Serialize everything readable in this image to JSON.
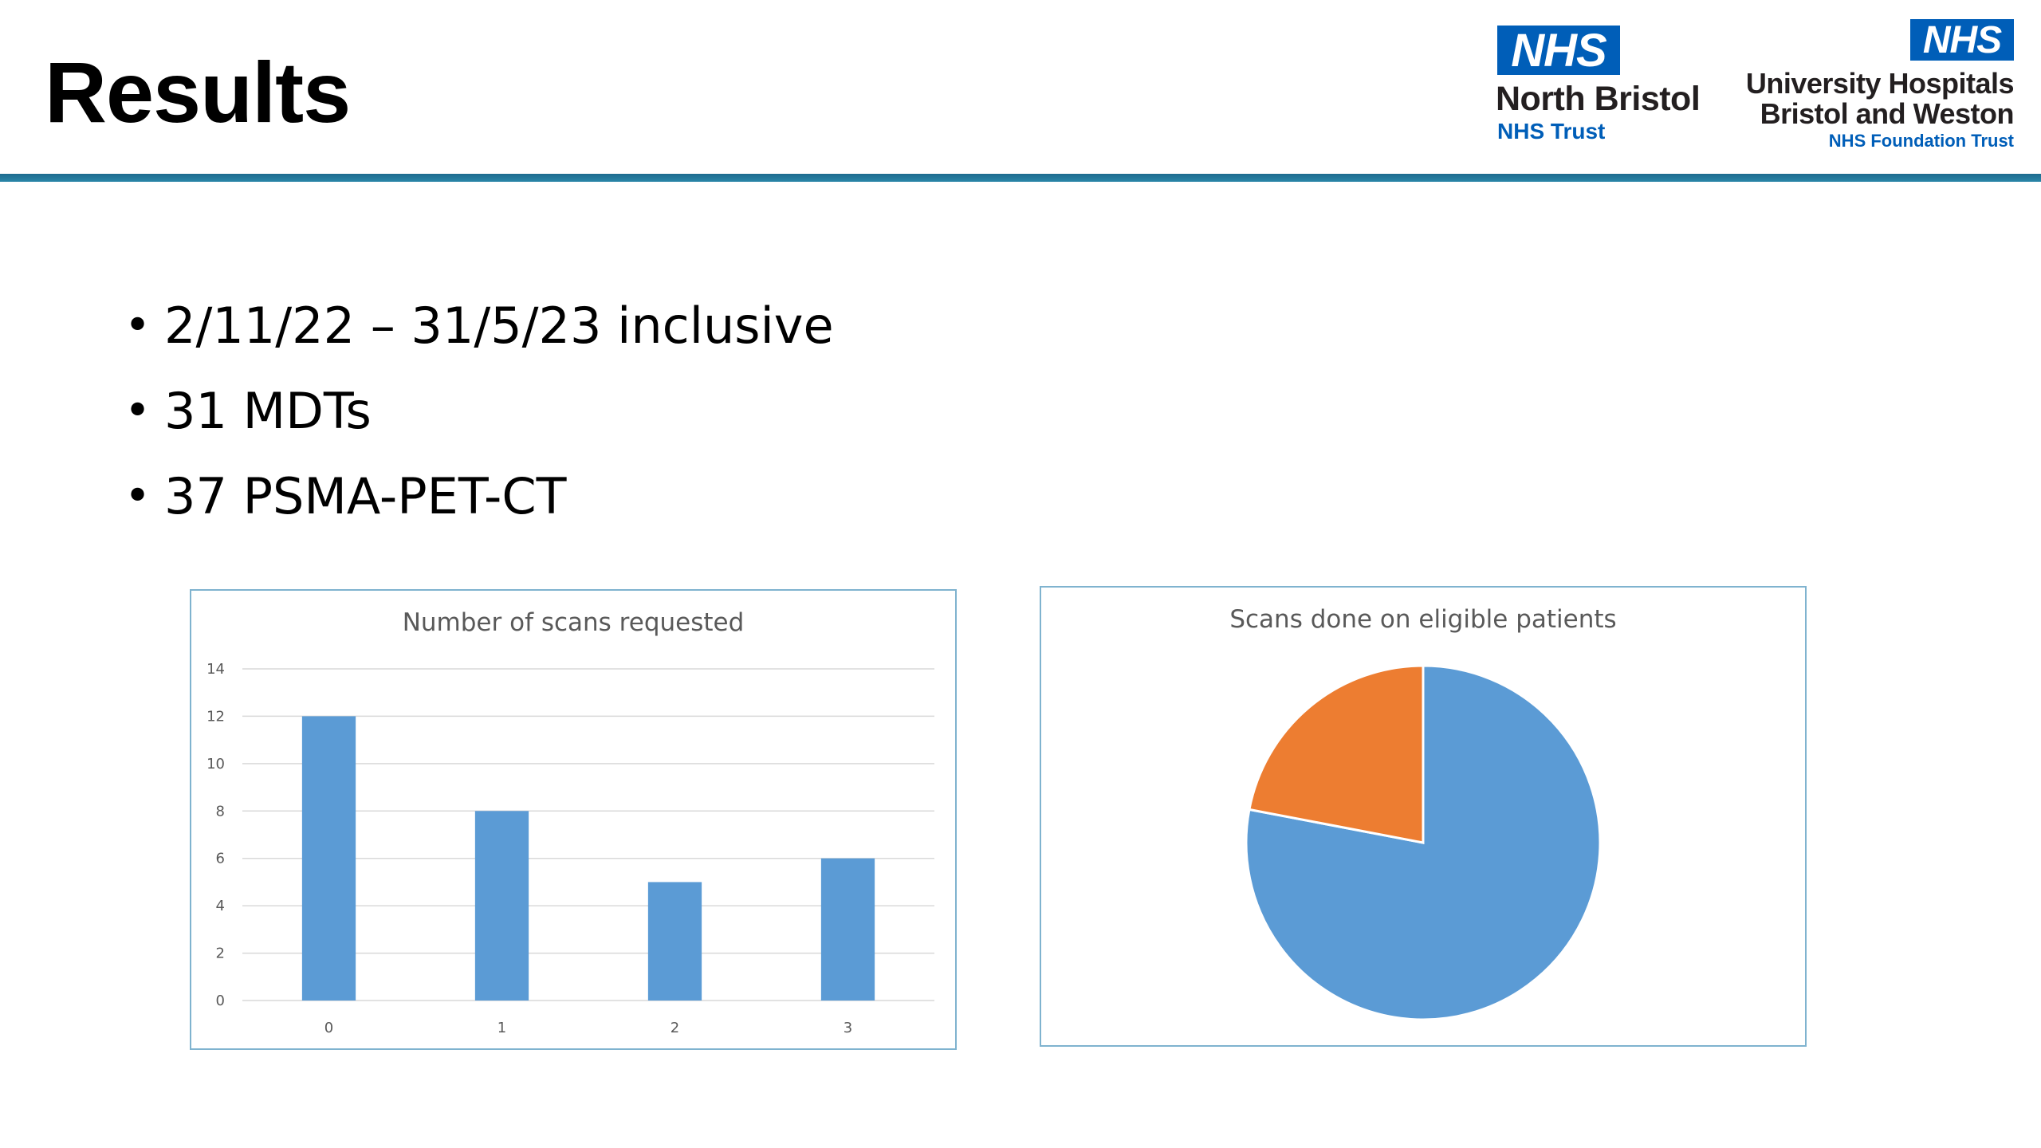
{
  "slide": {
    "title": "Results",
    "bullets": [
      "2/11/22 – 31/5/23 inclusive",
      "31 MDTs",
      "37 PSMA-PET-CT"
    ]
  },
  "logos": {
    "north_bristol": {
      "badge": "NHS",
      "name": "North Bristol",
      "sub": "NHS Trust"
    },
    "uhbw": {
      "badge": "NHS",
      "line1": "University Hospitals",
      "line2": "Bristol and Weston",
      "sub": "NHS Foundation Trust"
    }
  },
  "colors": {
    "nhs_blue": "#005eb8",
    "rule": "#2a86a8",
    "bar": "#5b9bd5",
    "pie_blue": "#5b9bd5",
    "pie_orange": "#ed7d31"
  },
  "chart_data": [
    {
      "type": "bar",
      "title": "Number of scans requested",
      "categories": [
        "0",
        "1",
        "2",
        "3"
      ],
      "values": [
        12,
        8,
        5,
        6
      ],
      "ylim": [
        0,
        14
      ],
      "yticks": [
        "0",
        "2",
        "4",
        "6",
        "8",
        "10",
        "12",
        "14"
      ],
      "grid": true,
      "xlabel": "",
      "ylabel": ""
    },
    {
      "type": "pie",
      "title": "Scans done on eligible patients",
      "values": [
        78,
        22
      ],
      "colors": [
        "#5b9bd5",
        "#ed7d31"
      ],
      "legend": false
    }
  ]
}
